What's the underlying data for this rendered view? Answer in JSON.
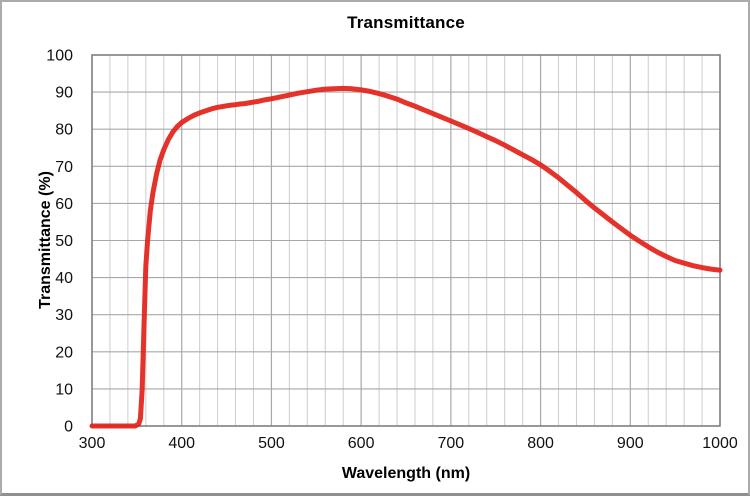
{
  "chart_data": {
    "type": "line",
    "title": "Transmittance",
    "xlabel": "Wavelength (nm)",
    "ylabel": "Transmittance (%)",
    "xlim": [
      300,
      1000
    ],
    "ylim": [
      0,
      100
    ],
    "x_major_tick_step": 100,
    "x_minor_tick_step": 20,
    "y_major_tick_step": 10,
    "x_tick_labels": [
      "300",
      "400",
      "500",
      "600",
      "700",
      "800",
      "900",
      "1000"
    ],
    "y_tick_labels": [
      "0",
      "10",
      "20",
      "30",
      "40",
      "50",
      "60",
      "70",
      "80",
      "90",
      "100"
    ],
    "grid": true,
    "legend_position": "none",
    "series": [
      {
        "name": "transmittance",
        "color": "#e32119",
        "points": [
          [
            300,
            0
          ],
          [
            310,
            0
          ],
          [
            320,
            0
          ],
          [
            330,
            0
          ],
          [
            340,
            0
          ],
          [
            348,
            0
          ],
          [
            352,
            0.5
          ],
          [
            354,
            2
          ],
          [
            356,
            10
          ],
          [
            358,
            27
          ],
          [
            360,
            43
          ],
          [
            362,
            50
          ],
          [
            365,
            58
          ],
          [
            368,
            63
          ],
          [
            372,
            68
          ],
          [
            376,
            71.8
          ],
          [
            380,
            74.5
          ],
          [
            385,
            77.2
          ],
          [
            390,
            79.2
          ],
          [
            395,
            80.7
          ],
          [
            400,
            81.8
          ],
          [
            405,
            82.6
          ],
          [
            410,
            83.3
          ],
          [
            415,
            83.9
          ],
          [
            420,
            84.4
          ],
          [
            425,
            84.8
          ],
          [
            430,
            85.2
          ],
          [
            435,
            85.6
          ],
          [
            440,
            85.9
          ],
          [
            445,
            86.1
          ],
          [
            450,
            86.3
          ],
          [
            455,
            86.5
          ],
          [
            460,
            86.6
          ],
          [
            465,
            86.8
          ],
          [
            470,
            86.9
          ],
          [
            475,
            87.1
          ],
          [
            480,
            87.3
          ],
          [
            485,
            87.5
          ],
          [
            490,
            87.8
          ],
          [
            495,
            88
          ],
          [
            500,
            88.2
          ],
          [
            510,
            88.7
          ],
          [
            520,
            89.2
          ],
          [
            530,
            89.7
          ],
          [
            540,
            90.1
          ],
          [
            550,
            90.5
          ],
          [
            560,
            90.8
          ],
          [
            570,
            90.9
          ],
          [
            580,
            91
          ],
          [
            590,
            90.9
          ],
          [
            600,
            90.6
          ],
          [
            610,
            90.2
          ],
          [
            620,
            89.6
          ],
          [
            630,
            88.9
          ],
          [
            640,
            88.1
          ],
          [
            650,
            87.1
          ],
          [
            660,
            86.2
          ],
          [
            670,
            85.2
          ],
          [
            680,
            84.2
          ],
          [
            690,
            83.2
          ],
          [
            700,
            82.2
          ],
          [
            710,
            81.2
          ],
          [
            720,
            80.2
          ],
          [
            730,
            79.1
          ],
          [
            740,
            78
          ],
          [
            750,
            76.9
          ],
          [
            760,
            75.7
          ],
          [
            770,
            74.4
          ],
          [
            780,
            73.1
          ],
          [
            790,
            71.8
          ],
          [
            800,
            70.4
          ],
          [
            810,
            68.7
          ],
          [
            820,
            66.9
          ],
          [
            830,
            64.9
          ],
          [
            840,
            62.9
          ],
          [
            850,
            60.8
          ],
          [
            860,
            58.8
          ],
          [
            870,
            56.9
          ],
          [
            880,
            55
          ],
          [
            890,
            53.2
          ],
          [
            900,
            51.4
          ],
          [
            910,
            49.8
          ],
          [
            920,
            48.3
          ],
          [
            930,
            46.9
          ],
          [
            940,
            45.7
          ],
          [
            950,
            44.6
          ],
          [
            960,
            43.9
          ],
          [
            970,
            43.2
          ],
          [
            980,
            42.7
          ],
          [
            990,
            42.3
          ],
          [
            1000,
            42
          ]
        ]
      }
    ]
  },
  "colors": {
    "background": "#ffffff",
    "outer_border": "#ababab",
    "plot_border": "#7f7f7f",
    "grid_major": "#a8a8a8",
    "grid_minor": "#cdcdcd",
    "text": "#000000",
    "series_red": "#e32119"
  }
}
